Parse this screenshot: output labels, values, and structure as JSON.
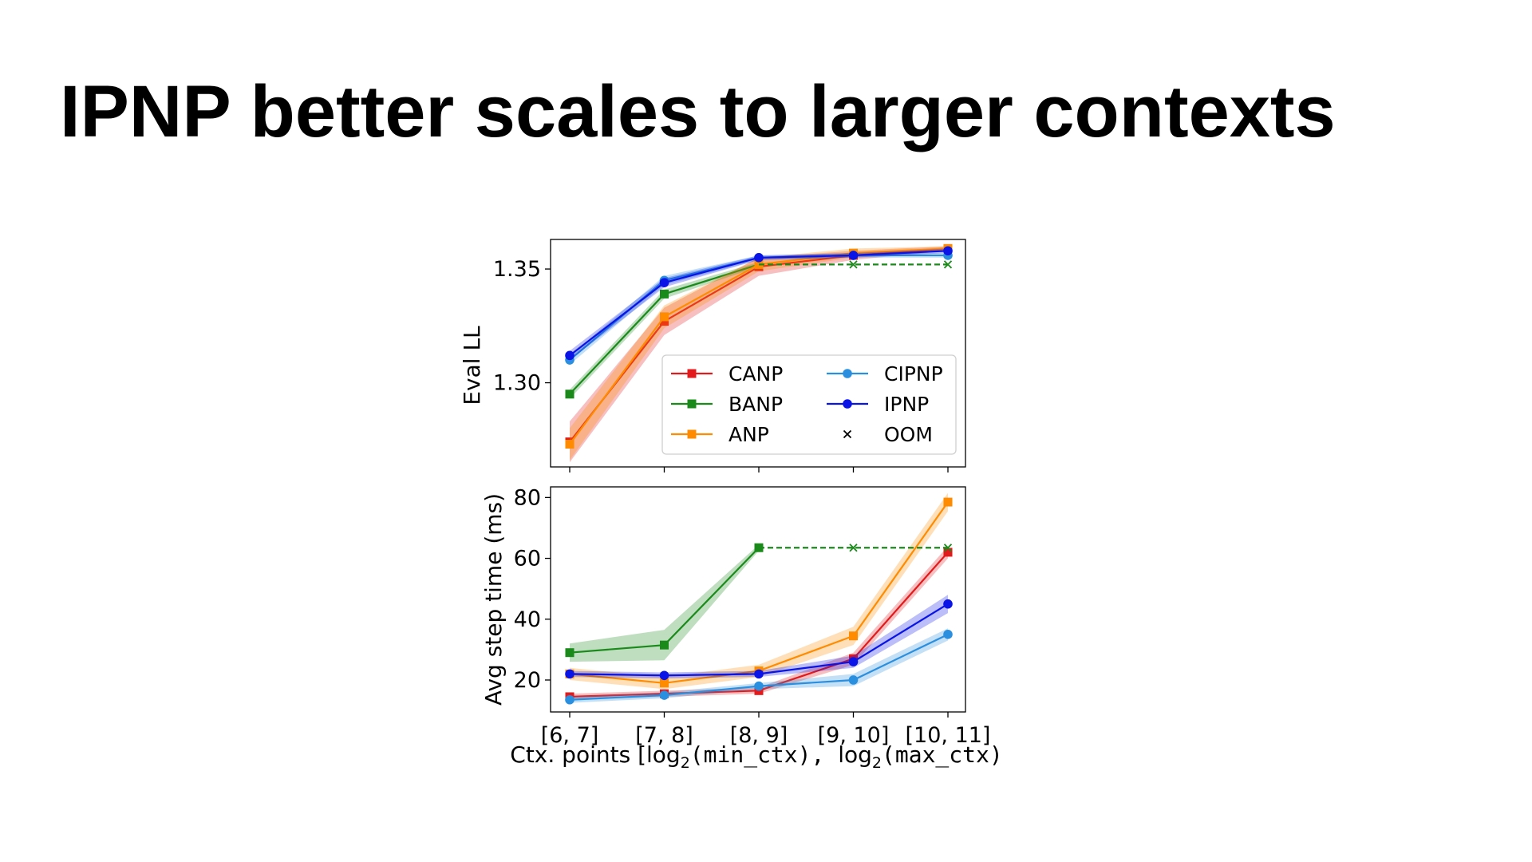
{
  "slide": {
    "title": "IPNP better scales to larger contexts"
  },
  "chart_data": [
    {
      "type": "line",
      "id": "eval-ll",
      "ylabel": "Eval LL",
      "ylim": [
        1.263,
        1.363
      ],
      "yticks": [
        1.3,
        1.35
      ],
      "ytick_labels": [
        "1.30",
        "1.35"
      ],
      "categories": [
        "[6, 7]",
        "[7, 8]",
        "[8, 9]",
        "[9, 10]",
        "[10, 11]"
      ],
      "grid": false,
      "legend": {
        "placement": "lower-right",
        "columns": 2
      },
      "series": [
        {
          "name": "CANP",
          "color": "#e31a1c",
          "marker": "square",
          "values": [
            1.274,
            1.327,
            1.351,
            1.356,
            1.359
          ],
          "band": [
            0.009,
            0.006,
            0.004,
            0.002,
            0.001
          ]
        },
        {
          "name": "BANP",
          "color": "#1a8a1a",
          "marker": "square",
          "values": [
            1.295,
            1.339,
            1.352,
            null,
            null
          ],
          "band": [
            0.002,
            0.002,
            0.001,
            0,
            0
          ]
        },
        {
          "name": "ANP",
          "color": "#ff8c00",
          "marker": "square",
          "values": [
            1.273,
            1.329,
            1.352,
            1.357,
            1.359
          ],
          "band": [
            0.007,
            0.005,
            0.003,
            0.002,
            0.001
          ]
        },
        {
          "name": "CIPNP",
          "color": "#2b8fe0",
          "marker": "circle",
          "values": [
            1.31,
            1.345,
            1.355,
            1.356,
            1.356
          ],
          "band": [
            0.002,
            0.002,
            0.001,
            0.001,
            0.001
          ]
        },
        {
          "name": "IPNP",
          "color": "#0a14e6",
          "marker": "circle",
          "values": [
            1.312,
            1.344,
            1.355,
            1.356,
            1.358
          ],
          "band": [
            0.002,
            0.002,
            0.001,
            0.001,
            0.001
          ]
        },
        {
          "name": "OOM",
          "color": "#1a8a1a",
          "marker": "x",
          "dashed_from": 2,
          "values": [
            null,
            null,
            1.352,
            1.352,
            1.352
          ]
        }
      ]
    },
    {
      "type": "line",
      "id": "step-time",
      "ylabel": "Avg step time (ms)",
      "xlabel": "Ctx. points [log2(min_ctx), log2(max_ctx)",
      "ylim": [
        9.5,
        83.5
      ],
      "yticks": [
        20,
        40,
        60,
        80
      ],
      "ytick_labels": [
        "20",
        "40",
        "60",
        "80"
      ],
      "categories": [
        "[6, 7]",
        "[7, 8]",
        "[8, 9]",
        "[9, 10]",
        "[10, 11]"
      ],
      "grid": false,
      "series": [
        {
          "name": "CANP",
          "color": "#e31a1c",
          "marker": "square",
          "values": [
            14.5,
            15.5,
            16.5,
            27,
            62
          ],
          "band": [
            1,
            1,
            1,
            2,
            2
          ]
        },
        {
          "name": "BANP",
          "color": "#1a8a1a",
          "marker": "square",
          "values": [
            29,
            31.5,
            63.5,
            null,
            null
          ],
          "band": [
            3,
            5,
            1,
            0,
            0
          ]
        },
        {
          "name": "ANP",
          "color": "#ff8c00",
          "marker": "square",
          "values": [
            22,
            19,
            23,
            34.5,
            78.5
          ],
          "band": [
            2,
            2,
            2,
            3,
            3
          ]
        },
        {
          "name": "CIPNP",
          "color": "#2b8fe0",
          "marker": "circle",
          "values": [
            13.5,
            15,
            18,
            20,
            35
          ],
          "band": [
            1,
            1,
            1,
            2,
            2
          ]
        },
        {
          "name": "IPNP",
          "color": "#0a14e6",
          "marker": "circle",
          "values": [
            22,
            21.5,
            22,
            26,
            45
          ],
          "band": [
            1,
            1,
            1,
            2,
            3
          ]
        },
        {
          "name": "OOM",
          "color": "#1a8a1a",
          "marker": "x",
          "dashed_from": 2,
          "values": [
            null,
            null,
            63.5,
            63.5,
            63.5
          ]
        }
      ]
    }
  ]
}
